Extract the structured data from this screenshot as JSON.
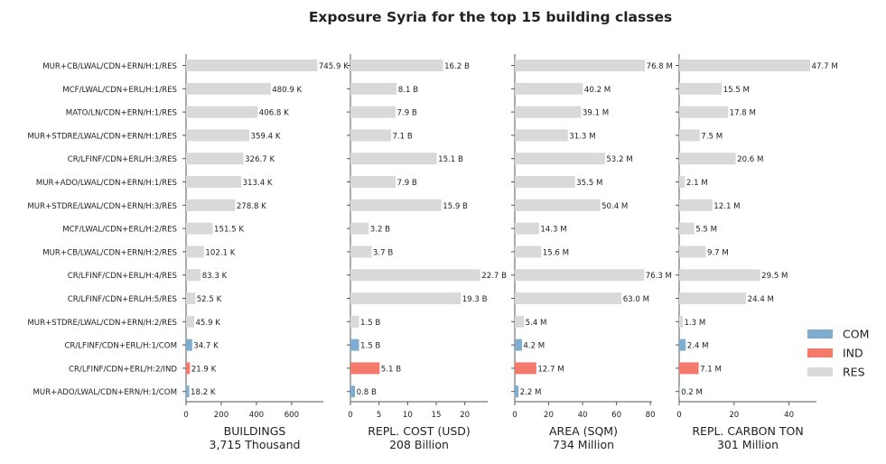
{
  "chart_data": {
    "type": "bar",
    "orientation": "horizontal",
    "title": "Exposure Syria for the top 15 building classes",
    "categories": [
      "MUR+CB/LWAL/CDN+ERN/H:1/RES",
      "MCF/LWAL/CDN+ERL/H:1/RES",
      "MATO/LN/CDN+ERN/H:1/RES",
      "MUR+STDRE/LWAL/CDN+ERN/H:1/RES",
      "CR/LFINF/CDN+ERL/H:3/RES",
      "MUR+ADO/LWAL/CDN+ERN/H:1/RES",
      "MUR+STDRE/LWAL/CDN+ERN/H:3/RES",
      "MCF/LWAL/CDN+ERL/H:2/RES",
      "MUR+CB/LWAL/CDN+ERN/H:2/RES",
      "CR/LFINF/CDN+ERL/H:4/RES",
      "CR/LFINF/CDN+ERL/H:5/RES",
      "MUR+STDRE/LWAL/CDN+ERN/H:2/RES",
      "CR/LFINF/CDN+ERL/H:1/COM",
      "CR/LFINF/CDN+ERL/H:2/IND",
      "MUR+ADO/LWAL/CDN+ERN/H:1/COM"
    ],
    "occupancy": [
      "RES",
      "RES",
      "RES",
      "RES",
      "RES",
      "RES",
      "RES",
      "RES",
      "RES",
      "RES",
      "RES",
      "RES",
      "COM",
      "IND",
      "COM"
    ],
    "legend": {
      "placement": "right",
      "entries": [
        {
          "name": "COM",
          "color": "#7fadd0"
        },
        {
          "name": "IND",
          "color": "#f47b6b"
        },
        {
          "name": "RES",
          "color": "#d9d9d9"
        }
      ]
    },
    "panels": [
      {
        "xlabel": "BUILDINGS",
        "subtitle": "3,715 Thousand",
        "xlim": [
          0,
          780
        ],
        "ticks": [
          0,
          200,
          400,
          600
        ],
        "values": [
          745.9,
          480.9,
          406.8,
          359.4,
          326.7,
          313.4,
          278.8,
          151.5,
          102.1,
          83.3,
          52.5,
          45.9,
          34.7,
          21.9,
          18.2
        ],
        "labels": [
          "745.9 K",
          "480.9 K",
          "406.8 K",
          "359.4 K",
          "326.7 K",
          "313.4 K",
          "278.8 K",
          "151.5 K",
          "102.1 K",
          "83.3 K",
          "52.5 K",
          "45.9 K",
          "34.7 K",
          "21.9 K",
          "18.2 K"
        ]
      },
      {
        "xlabel": "REPL. COST (USD)",
        "subtitle": "208 Billion",
        "xlim": [
          0,
          24
        ],
        "ticks": [
          0,
          5,
          10,
          15,
          20
        ],
        "values": [
          16.2,
          8.1,
          7.9,
          7.1,
          15.1,
          7.9,
          15.9,
          3.2,
          3.7,
          22.7,
          19.3,
          1.5,
          1.5,
          5.1,
          0.8
        ],
        "labels": [
          "16.2 B",
          "8.1 B",
          "7.9 B",
          "7.1 B",
          "15.1 B",
          "7.9 B",
          "15.9 B",
          "3.2 B",
          "3.7 B",
          "22.7 B",
          "19.3 B",
          "1.5 B",
          "1.5 B",
          "5.1 B",
          "0.8 B"
        ]
      },
      {
        "xlabel": "AREA (SQM)",
        "subtitle": "734 Million",
        "xlim": [
          0,
          81
        ],
        "ticks": [
          0,
          20,
          40,
          60,
          80
        ],
        "values": [
          76.8,
          40.2,
          39.1,
          31.3,
          53.2,
          35.5,
          50.4,
          14.3,
          15.6,
          76.3,
          63.0,
          5.4,
          4.2,
          12.7,
          2.2
        ],
        "labels": [
          "76.8 M",
          "40.2 M",
          "39.1 M",
          "31.3 M",
          "53.2 M",
          "35.5 M",
          "50.4 M",
          "14.3 M",
          "15.6 M",
          "76.3 M",
          "63.0 M",
          "5.4 M",
          "4.2 M",
          "12.7 M",
          "2.2 M"
        ]
      },
      {
        "xlabel": "REPL. CARBON TON",
        "subtitle": "301 Million",
        "xlim": [
          0,
          50
        ],
        "ticks": [
          0,
          20,
          40
        ],
        "values": [
          47.7,
          15.5,
          17.8,
          7.5,
          20.6,
          2.1,
          12.1,
          5.5,
          9.7,
          29.5,
          24.4,
          1.3,
          2.4,
          7.1,
          0.2
        ],
        "labels": [
          "47.7 M",
          "15.5 M",
          "17.8 M",
          "7.5 M",
          "20.6 M",
          "2.1 M",
          "12.1 M",
          "5.5 M",
          "9.7 M",
          "29.5 M",
          "24.4 M",
          "1.3 M",
          "2.4 M",
          "7.1 M",
          "0.2 M"
        ]
      }
    ]
  }
}
